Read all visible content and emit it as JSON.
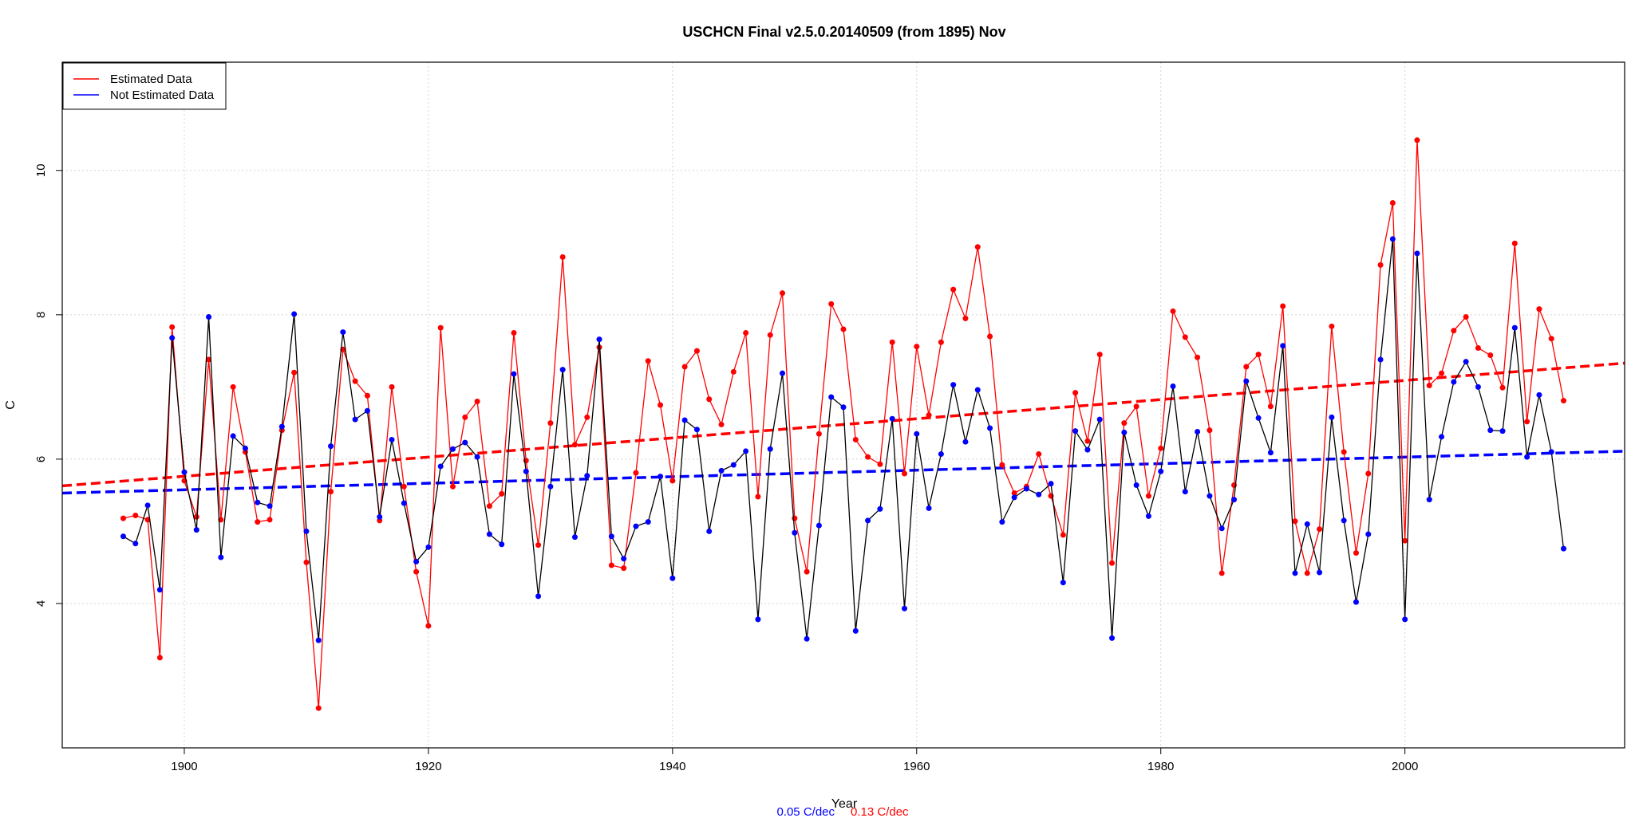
{
  "chart_data": {
    "type": "line",
    "title": "USCHCN Final v2.5.0.20140509 (from 1895) Nov",
    "xlabel": "Year",
    "ylabel": "C",
    "xlim": [
      1890,
      2018
    ],
    "ylim": [
      2,
      11.5
    ],
    "x_ticks": [
      1900,
      1920,
      1940,
      1960,
      1980,
      2000
    ],
    "y_ticks": [
      4,
      6,
      8,
      10
    ],
    "grid": true,
    "legend_position": "top-left",
    "legend": [
      {
        "label": "Estimated Data",
        "color": "#ff0000"
      },
      {
        "label": "Not Estimated Data",
        "color": "#0000ff"
      }
    ],
    "footer": {
      "blue_trend": "0.05 C/dec",
      "red_trend": "0.13 C/dec"
    },
    "colors": {
      "estimated": "#ff0000",
      "not_estimated": "#0000ff",
      "connector": "#000000"
    },
    "series": [
      {
        "name": "Estimated Data",
        "color": "#ff0000",
        "x": [
          1895,
          1896,
          1897,
          1898,
          1899,
          1900,
          1901,
          1902,
          1903,
          1904,
          1905,
          1906,
          1907,
          1908,
          1909,
          1910,
          1911,
          1912,
          1913,
          1914,
          1915,
          1916,
          1917,
          1918,
          1919,
          1920,
          1921,
          1922,
          1923,
          1924,
          1925,
          1926,
          1927,
          1928,
          1929,
          1930,
          1931,
          1932,
          1933,
          1934,
          1935,
          1936,
          1937,
          1938,
          1939,
          1940,
          1941,
          1942,
          1943,
          1944,
          1945,
          1946,
          1947,
          1948,
          1949,
          1950,
          1951,
          1952,
          1953,
          1954,
          1955,
          1956,
          1957,
          1958,
          1959,
          1960,
          1961,
          1962,
          1963,
          1964,
          1965,
          1966,
          1967,
          1968,
          1969,
          1970,
          1971,
          1972,
          1973,
          1974,
          1975,
          1976,
          1977,
          1978,
          1979,
          1980,
          1981,
          1982,
          1983,
          1984,
          1985,
          1986,
          1987,
          1988,
          1989,
          1990,
          1991,
          1992,
          1993,
          1994,
          1995,
          1996,
          1997,
          1998,
          1999,
          2000,
          2001,
          2002,
          2003,
          2004,
          2005,
          2006,
          2007,
          2008,
          2009,
          2010,
          2011,
          2012,
          2013
        ],
        "values": [
          5.18,
          5.22,
          5.16,
          3.25,
          7.83,
          5.7,
          5.2,
          7.38,
          5.16,
          7.0,
          6.1,
          5.13,
          5.16,
          6.4,
          7.2,
          4.57,
          2.55,
          5.55,
          7.52,
          7.08,
          6.88,
          5.15,
          7.0,
          5.62,
          4.44,
          3.69,
          7.82,
          5.62,
          6.58,
          6.8,
          5.35,
          5.52,
          7.75,
          5.98,
          4.81,
          6.5,
          8.8,
          6.2,
          6.58,
          7.55,
          4.53,
          4.49,
          5.81,
          7.36,
          6.75,
          5.7,
          7.28,
          7.5,
          6.83,
          6.48,
          7.21,
          7.75,
          5.48,
          7.72,
          8.3,
          5.18,
          4.44,
          6.35,
          8.15,
          7.8,
          6.27,
          6.03,
          5.93,
          7.62,
          5.8,
          7.56,
          6.61,
          7.62,
          8.35,
          7.95,
          8.94,
          7.7,
          5.92,
          5.53,
          5.62,
          6.07,
          5.49,
          4.95,
          6.92,
          6.25,
          7.45,
          4.56,
          6.5,
          6.73,
          5.49,
          6.15,
          8.05,
          7.69,
          7.41,
          6.4,
          4.42,
          5.64,
          7.28,
          7.45,
          6.73,
          8.12,
          5.14,
          4.42,
          5.03,
          7.84,
          6.1,
          4.7,
          5.8,
          8.69,
          9.55,
          4.87,
          10.42,
          7.02,
          7.19,
          7.78,
          7.97,
          7.54,
          7.44,
          6.99,
          8.99,
          6.52,
          8.08,
          7.67,
          6.81
        ]
      },
      {
        "name": "Not Estimated Data",
        "color": "#0000ff",
        "x": [
          1895,
          1896,
          1897,
          1898,
          1899,
          1900,
          1901,
          1902,
          1903,
          1904,
          1905,
          1906,
          1907,
          1908,
          1909,
          1910,
          1911,
          1912,
          1913,
          1914,
          1915,
          1916,
          1917,
          1918,
          1919,
          1920,
          1921,
          1922,
          1923,
          1924,
          1925,
          1926,
          1927,
          1928,
          1929,
          1930,
          1931,
          1932,
          1933,
          1934,
          1935,
          1936,
          1937,
          1938,
          1939,
          1940,
          1941,
          1942,
          1943,
          1944,
          1945,
          1946,
          1947,
          1948,
          1949,
          1950,
          1951,
          1952,
          1953,
          1954,
          1955,
          1956,
          1957,
          1958,
          1959,
          1960,
          1961,
          1962,
          1963,
          1964,
          1965,
          1966,
          1967,
          1968,
          1969,
          1970,
          1971,
          1972,
          1973,
          1974,
          1975,
          1976,
          1977,
          1978,
          1979,
          1980,
          1981,
          1982,
          1983,
          1984,
          1985,
          1986,
          1987,
          1988,
          1989,
          1990,
          1991,
          1992,
          1993,
          1994,
          1995,
          1996,
          1997,
          1998,
          1999,
          2000,
          2001,
          2002,
          2003,
          2004,
          2005,
          2006,
          2007,
          2008,
          2009,
          2010,
          2011,
          2012,
          2013
        ],
        "values": [
          4.93,
          4.83,
          5.36,
          4.19,
          7.68,
          5.82,
          5.02,
          7.97,
          4.64,
          6.32,
          6.15,
          5.4,
          5.35,
          6.45,
          8.01,
          5.0,
          3.49,
          6.18,
          7.76,
          6.55,
          6.67,
          5.2,
          6.27,
          5.39,
          4.58,
          4.78,
          5.9,
          6.14,
          6.23,
          6.03,
          4.96,
          4.82,
          7.18,
          5.83,
          4.1,
          5.62,
          7.24,
          4.92,
          5.77,
          7.66,
          4.93,
          4.62,
          5.07,
          5.13,
          5.76,
          4.35,
          6.54,
          6.41,
          5.0,
          5.84,
          5.92,
          6.11,
          3.78,
          6.14,
          7.19,
          4.98,
          3.51,
          5.08,
          6.86,
          6.72,
          3.62,
          5.15,
          5.31,
          6.56,
          3.93,
          6.35,
          5.32,
          6.07,
          7.03,
          6.24,
          6.96,
          6.43,
          5.13,
          5.47,
          5.59,
          5.51,
          5.66,
          4.29,
          6.39,
          6.13,
          6.55,
          3.52,
          6.37,
          5.64,
          5.21,
          5.83,
          7.01,
          5.55,
          6.38,
          5.49,
          5.04,
          5.44,
          7.08,
          6.57,
          6.09,
          7.57,
          4.42,
          5.1,
          4.43,
          6.58,
          5.15,
          4.02,
          4.96,
          7.38,
          9.05,
          3.78,
          8.85,
          5.44,
          6.31,
          7.07,
          7.35,
          7.0,
          6.4,
          6.39,
          7.82,
          6.03,
          6.89,
          6.1,
          4.76
        ]
      },
      {
        "name": "",
        "color": "#ff0000",
        "style": "dashed",
        "x": [
          1890,
          2018
        ],
        "values": [
          5.63,
          7.33
        ]
      },
      {
        "name": "",
        "color": "#0000ff",
        "style": "dashed",
        "x": [
          1890,
          2018
        ],
        "values": [
          5.53,
          6.11
        ]
      }
    ]
  }
}
